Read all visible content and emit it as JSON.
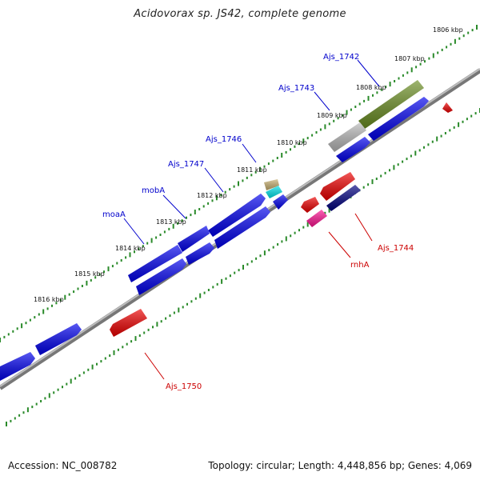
{
  "title": "Acidovorax sp. JS42, complete genome",
  "footer": {
    "accession": "Accession: NC_008782",
    "stats": "Topology: circular; Length: 4,448,856 bp; Genes: 4,069"
  },
  "colors": {
    "forward": "#0000ee",
    "reverse": "#ee0000",
    "tick": "#2a8a2a",
    "backbone": "#888888",
    "olive": "#6b8e23",
    "gray": "#b8b8b8",
    "navy": "#000080",
    "pink": "#ff1493",
    "tan": "#c8b070",
    "cyan": "#00e5ee"
  },
  "kbp_labels": [
    "1806 kbp",
    "1807 kbp",
    "1808 kbp",
    "1809 kbp",
    "1810 kbp",
    "1811 kbp",
    "1812 kbp",
    "1813 kbp",
    "1814 kbp",
    "1815 kbp",
    "1816 kbp"
  ],
  "gene_labels": {
    "ajs_1742": "Ajs_1742",
    "ajs_1743": "Ajs_1743",
    "ajs_1746": "Ajs_1746",
    "ajs_1747": "Ajs_1747",
    "moba": "mobA",
    "moaa": "moaA",
    "ajs_1744": "Ajs_1744",
    "rnha": "rnhA",
    "ajs_1750": "Ajs_1750"
  }
}
